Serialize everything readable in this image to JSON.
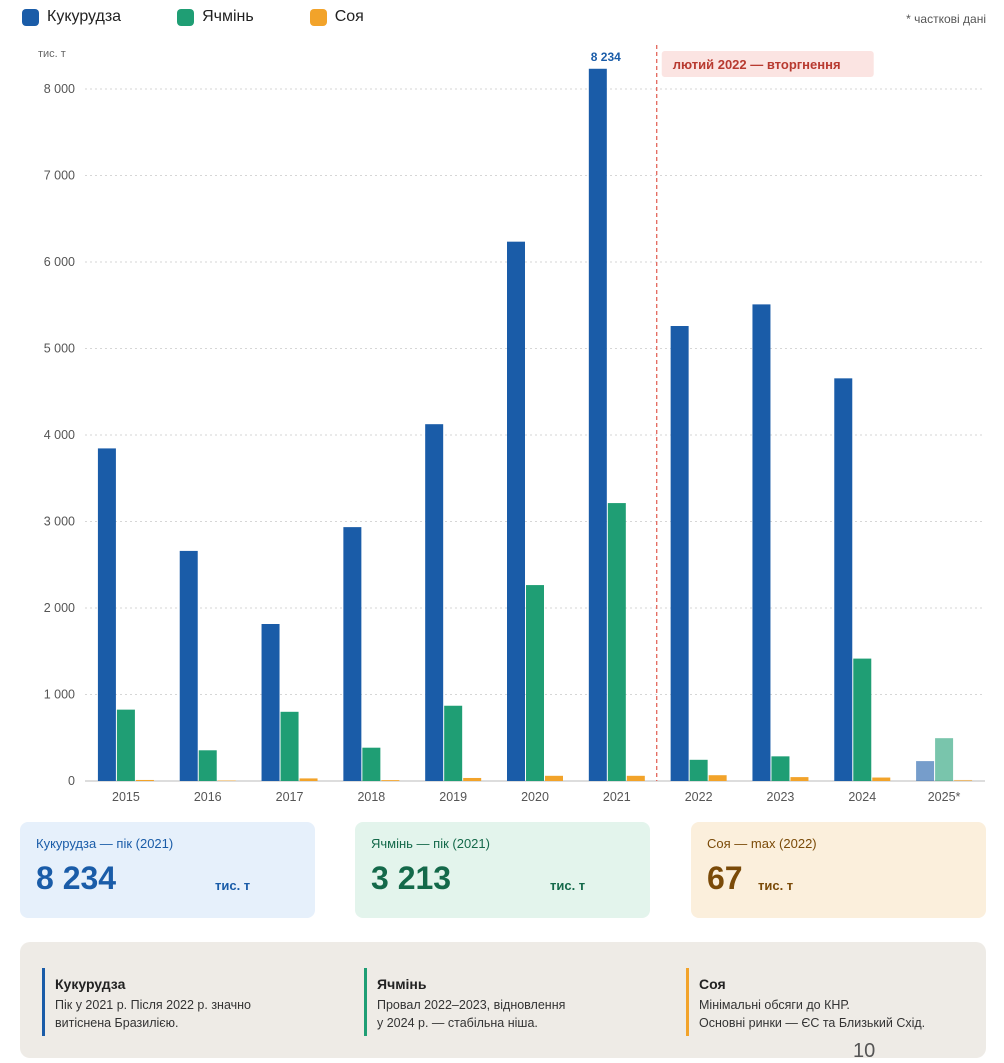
{
  "legend": {
    "items": [
      {
        "label": "Кукурудза",
        "color": "#1a5ca8"
      },
      {
        "label": "Ячмінь",
        "color": "#1f9e74"
      },
      {
        "label": "Соя",
        "color": "#f2a32a"
      }
    ],
    "note": "* часткові дані"
  },
  "chart_data": {
    "type": "bar",
    "ylabel": "тис. т",
    "ylim": [
      0,
      8300
    ],
    "yticks": [
      0,
      1000,
      2000,
      3000,
      4000,
      5000,
      6000,
      7000,
      8000
    ],
    "ytick_labels": [
      "0",
      "1 000",
      "2 000",
      "3 000",
      "4 000",
      "5 000",
      "6 000",
      "7 000",
      "8 000"
    ],
    "grid": true,
    "categories": [
      "2015",
      "2016",
      "2017",
      "2018",
      "2019",
      "2020",
      "2021",
      "2022",
      "2023",
      "2024",
      "2025*"
    ],
    "series": [
      {
        "name": "Кукурудза",
        "color": "#1a5ca8",
        "values": [
          3845,
          2660,
          1815,
          2935,
          4125,
          6235,
          8234,
          5260,
          5510,
          4655,
          230
        ]
      },
      {
        "name": "Ячмінь",
        "color": "#1f9e74",
        "values": [
          825,
          355,
          800,
          385,
          870,
          2265,
          3213,
          245,
          285,
          1415,
          495
        ]
      },
      {
        "name": "Соя",
        "color": "#f2a32a",
        "values": [
          12,
          5,
          30,
          10,
          35,
          60,
          60,
          67,
          45,
          40,
          12
        ]
      }
    ],
    "partial_category": "2025*",
    "data_label": {
      "category": "2021",
      "series": "Кукурудза",
      "text": "8 234"
    },
    "annotation": {
      "after_category": "2021",
      "text": "лютий 2022 — вторгнення",
      "color": "#e05a4e"
    }
  },
  "cards": [
    {
      "title": "Кукурудза — пік (2021)",
      "value": "8 234",
      "unit": "тис. т",
      "bg": "#e6f0fb",
      "color": "#1a5ca8"
    },
    {
      "title": "Ячмінь — пік (2021)",
      "value": "3 213",
      "unit": "тис. т",
      "bg": "#e3f4ec",
      "color": "#14694a"
    },
    {
      "title": "Соя — max (2022)",
      "value": "67",
      "unit": "тис. т",
      "bg": "#fbefdc",
      "color": "#7a4a08"
    }
  ],
  "notes": [
    {
      "title": "Кукурудза",
      "lines": [
        "Пік у 2021 р. Після 2022 р. значно",
        "витіснена Бразилією."
      ],
      "color": "#1a5ca8"
    },
    {
      "title": "Ячмінь",
      "lines": [
        "Провал 2022–2023, відновлення",
        "у 2024 р. — стабільна ніша."
      ],
      "color": "#1f9e74"
    },
    {
      "title": "Соя",
      "lines": [
        "Мінімальні обсяги до КНР.",
        "Основні ринки — ЄС та Близький Схід."
      ],
      "color": "#f2a32a"
    }
  ],
  "page_number": "10"
}
